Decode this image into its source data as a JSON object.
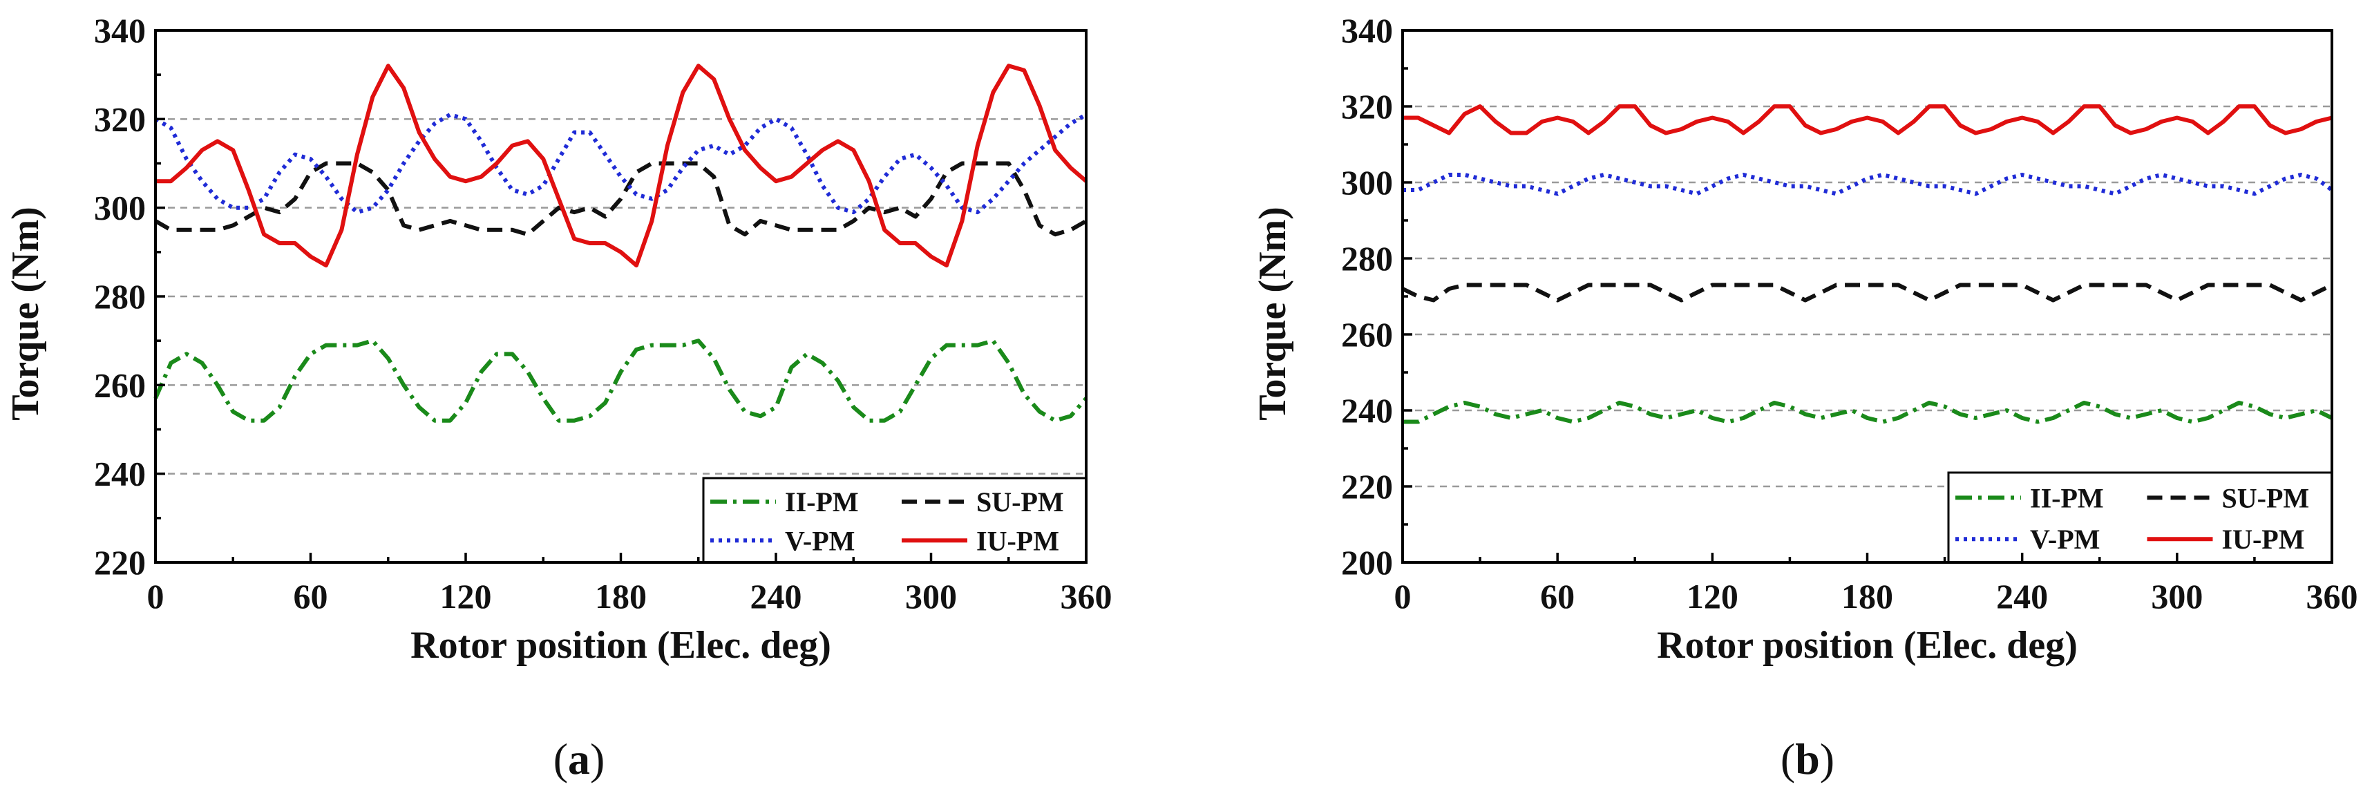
{
  "chart_data": [
    {
      "type": "line",
      "panel": "a",
      "xlabel": "Rotor position (Elec. deg)",
      "ylabel": "Torque (Nm)",
      "xlim": [
        0,
        360
      ],
      "ylim": [
        220,
        340
      ],
      "xticks": [
        "0",
        "60",
        "120",
        "180",
        "240",
        "300",
        "360"
      ],
      "yticks": [
        "220",
        "240",
        "260",
        "280",
        "300",
        "320",
        "340"
      ],
      "legend_position": "bottom-right",
      "grid": "horizontal dashed",
      "series": [
        {
          "name": "II-PM",
          "color": "#1a8a1a",
          "style": "dash-dot",
          "x": [
            0,
            6,
            12,
            18,
            24,
            30,
            36,
            42,
            48,
            54,
            60,
            66,
            72,
            78,
            84,
            90,
            96,
            102,
            108,
            114,
            120,
            126,
            132,
            138,
            144,
            150,
            156,
            162,
            168,
            174,
            180,
            186,
            192,
            198,
            204,
            210,
            216,
            222,
            228,
            234,
            240,
            246,
            252,
            258,
            264,
            270,
            276,
            282,
            288,
            294,
            300,
            306,
            312,
            318,
            324,
            330,
            336,
            342,
            348,
            354,
            360
          ],
          "values": [
            257,
            265,
            267,
            265,
            260,
            254,
            252,
            252,
            255,
            262,
            267,
            269,
            269,
            269,
            270,
            266,
            260,
            255,
            252,
            252,
            256,
            263,
            267,
            267,
            263,
            257,
            252,
            252,
            253,
            256,
            263,
            268,
            269,
            269,
            269,
            270,
            266,
            259,
            254,
            253,
            255,
            264,
            267,
            265,
            261,
            255,
            252,
            252,
            254,
            260,
            266,
            269,
            269,
            269,
            270,
            265,
            258,
            254,
            252,
            253,
            257
          ]
        },
        {
          "name": "SU-PM",
          "color": "#111111",
          "style": "dash",
          "x": [
            0,
            6,
            12,
            18,
            24,
            30,
            36,
            42,
            48,
            54,
            60,
            66,
            72,
            78,
            84,
            90,
            96,
            102,
            108,
            114,
            120,
            126,
            132,
            138,
            144,
            150,
            156,
            162,
            168,
            174,
            180,
            186,
            192,
            198,
            204,
            210,
            216,
            222,
            228,
            234,
            240,
            246,
            252,
            258,
            264,
            270,
            276,
            282,
            288,
            294,
            300,
            306,
            312,
            318,
            324,
            330,
            336,
            342,
            348,
            354,
            360
          ],
          "values": [
            297,
            295,
            295,
            295,
            295,
            296,
            298,
            300,
            299,
            302,
            308,
            310,
            310,
            310,
            308,
            304,
            296,
            295,
            296,
            297,
            296,
            295,
            295,
            295,
            294,
            297,
            300,
            299,
            300,
            298,
            302,
            308,
            310,
            310,
            310,
            310,
            307,
            296,
            294,
            297,
            296,
            295,
            295,
            295,
            295,
            297,
            300,
            299,
            300,
            298,
            302,
            308,
            310,
            310,
            310,
            310,
            304,
            296,
            294,
            295,
            297
          ]
        },
        {
          "name": "V-PM",
          "color": "#1f2bd6",
          "style": "dot",
          "x": [
            0,
            6,
            12,
            18,
            24,
            30,
            36,
            42,
            48,
            54,
            60,
            66,
            72,
            78,
            84,
            90,
            96,
            102,
            108,
            114,
            120,
            126,
            132,
            138,
            144,
            150,
            156,
            162,
            168,
            174,
            180,
            186,
            192,
            198,
            204,
            210,
            216,
            222,
            228,
            234,
            240,
            246,
            252,
            258,
            264,
            270,
            276,
            282,
            288,
            294,
            300,
            306,
            312,
            318,
            324,
            330,
            336,
            342,
            348,
            354,
            360
          ],
          "values": [
            320,
            318,
            311,
            306,
            302,
            300,
            300,
            302,
            308,
            312,
            311,
            307,
            302,
            299,
            300,
            304,
            310,
            315,
            319,
            321,
            320,
            315,
            309,
            304,
            303,
            305,
            311,
            317,
            317,
            312,
            307,
            303,
            302,
            304,
            309,
            313,
            314,
            312,
            314,
            318,
            320,
            318,
            312,
            305,
            300,
            299,
            302,
            307,
            311,
            312,
            309,
            305,
            300,
            299,
            302,
            306,
            310,
            313,
            316,
            319,
            321
          ]
        },
        {
          "name": "IU-PM",
          "color": "#e01010",
          "style": "solid",
          "x": [
            0,
            6,
            12,
            18,
            24,
            30,
            36,
            42,
            48,
            54,
            60,
            66,
            72,
            78,
            84,
            90,
            96,
            102,
            108,
            114,
            120,
            126,
            132,
            138,
            144,
            150,
            156,
            162,
            168,
            174,
            180,
            186,
            192,
            198,
            204,
            210,
            216,
            222,
            228,
            234,
            240,
            246,
            252,
            258,
            264,
            270,
            276,
            282,
            288,
            294,
            300,
            306,
            312,
            318,
            324,
            330,
            336,
            342,
            348,
            354,
            360
          ],
          "values": [
            306,
            306,
            309,
            313,
            315,
            313,
            304,
            294,
            292,
            292,
            289,
            287,
            295,
            312,
            325,
            332,
            327,
            317,
            311,
            307,
            306,
            307,
            310,
            314,
            315,
            311,
            302,
            293,
            292,
            292,
            290,
            287,
            297,
            314,
            326,
            332,
            329,
            320,
            313,
            309,
            306,
            307,
            310,
            313,
            315,
            313,
            306,
            295,
            292,
            292,
            289,
            287,
            297,
            314,
            326,
            332,
            331,
            323,
            313,
            309,
            306
          ]
        }
      ]
    },
    {
      "type": "line",
      "panel": "b",
      "xlabel": "Rotor position (Elec. deg)",
      "ylabel": "Torque (Nm)",
      "xlim": [
        0,
        360
      ],
      "ylim": [
        200,
        340
      ],
      "xticks": [
        "0",
        "60",
        "120",
        "180",
        "240",
        "300",
        "360"
      ],
      "yticks": [
        "200",
        "220",
        "240",
        "260",
        "280",
        "300",
        "320",
        "340"
      ],
      "legend_position": "bottom-right",
      "grid": "horizontal dashed",
      "series": [
        {
          "name": "II-PM",
          "color": "#1a8a1a",
          "style": "dash-dot",
          "x": [
            0,
            6,
            12,
            18,
            24,
            30,
            36,
            42,
            48,
            54,
            60,
            66,
            72,
            78,
            84,
            90,
            96,
            102,
            108,
            114,
            120,
            126,
            132,
            138,
            144,
            150,
            156,
            162,
            168,
            174,
            180,
            186,
            192,
            198,
            204,
            210,
            216,
            222,
            228,
            234,
            240,
            246,
            252,
            258,
            264,
            270,
            276,
            282,
            288,
            294,
            300,
            306,
            312,
            318,
            324,
            330,
            336,
            342,
            348,
            354,
            360
          ],
          "values": [
            237,
            237,
            239,
            241,
            242,
            241,
            239,
            238,
            239,
            240,
            238,
            237,
            238,
            240,
            242,
            241,
            239,
            238,
            239,
            240,
            238,
            237,
            238,
            240,
            242,
            241,
            239,
            238,
            239,
            240,
            238,
            237,
            238,
            240,
            242,
            241,
            239,
            238,
            239,
            240,
            238,
            237,
            238,
            240,
            242,
            241,
            239,
            238,
            239,
            240,
            238,
            237,
            238,
            240,
            242,
            241,
            239,
            238,
            239,
            240,
            238
          ]
        },
        {
          "name": "SU-PM",
          "color": "#111111",
          "style": "dash",
          "x": [
            0,
            6,
            12,
            18,
            24,
            30,
            36,
            42,
            48,
            54,
            60,
            66,
            72,
            78,
            84,
            90,
            96,
            102,
            108,
            114,
            120,
            126,
            132,
            138,
            144,
            150,
            156,
            162,
            168,
            174,
            180,
            186,
            192,
            198,
            204,
            210,
            216,
            222,
            228,
            234,
            240,
            246,
            252,
            258,
            264,
            270,
            276,
            282,
            288,
            294,
            300,
            306,
            312,
            318,
            324,
            330,
            336,
            342,
            348,
            354,
            360
          ],
          "values": [
            272,
            270,
            269,
            272,
            273,
            273,
            273,
            273,
            273,
            271,
            269,
            271,
            273,
            273,
            273,
            273,
            273,
            271,
            269,
            271,
            273,
            273,
            273,
            273,
            273,
            271,
            269,
            271,
            273,
            273,
            273,
            273,
            273,
            271,
            269,
            271,
            273,
            273,
            273,
            273,
            273,
            271,
            269,
            271,
            273,
            273,
            273,
            273,
            273,
            271,
            269,
            271,
            273,
            273,
            273,
            273,
            273,
            271,
            269,
            271,
            273
          ]
        },
        {
          "name": "V-PM",
          "color": "#1f2bd6",
          "style": "dot",
          "x": [
            0,
            6,
            12,
            18,
            24,
            30,
            36,
            42,
            48,
            54,
            60,
            66,
            72,
            78,
            84,
            90,
            96,
            102,
            108,
            114,
            120,
            126,
            132,
            138,
            144,
            150,
            156,
            162,
            168,
            174,
            180,
            186,
            192,
            198,
            204,
            210,
            216,
            222,
            228,
            234,
            240,
            246,
            252,
            258,
            264,
            270,
            276,
            282,
            288,
            294,
            300,
            306,
            312,
            318,
            324,
            330,
            336,
            342,
            348,
            354,
            360
          ],
          "values": [
            298,
            298,
            300,
            302,
            302,
            301,
            300,
            299,
            299,
            298,
            297,
            299,
            301,
            302,
            301,
            300,
            299,
            299,
            298,
            297,
            299,
            301,
            302,
            301,
            300,
            299,
            299,
            298,
            297,
            299,
            301,
            302,
            301,
            300,
            299,
            299,
            298,
            297,
            299,
            301,
            302,
            301,
            300,
            299,
            299,
            298,
            297,
            299,
            301,
            302,
            301,
            300,
            299,
            299,
            298,
            297,
            299,
            301,
            302,
            301,
            298
          ]
        },
        {
          "name": "IU-PM",
          "color": "#e01010",
          "style": "solid",
          "x": [
            0,
            6,
            12,
            18,
            24,
            30,
            36,
            42,
            48,
            54,
            60,
            66,
            72,
            78,
            84,
            90,
            96,
            102,
            108,
            114,
            120,
            126,
            132,
            138,
            144,
            150,
            156,
            162,
            168,
            174,
            180,
            186,
            192,
            198,
            204,
            210,
            216,
            222,
            228,
            234,
            240,
            246,
            252,
            258,
            264,
            270,
            276,
            282,
            288,
            294,
            300,
            306,
            312,
            318,
            324,
            330,
            336,
            342,
            348,
            354,
            360
          ],
          "values": [
            317,
            317,
            315,
            313,
            318,
            320,
            316,
            313,
            313,
            316,
            317,
            316,
            313,
            316,
            320,
            320,
            315,
            313,
            314,
            316,
            317,
            316,
            313,
            316,
            320,
            320,
            315,
            313,
            314,
            316,
            317,
            316,
            313,
            316,
            320,
            320,
            315,
            313,
            314,
            316,
            317,
            316,
            313,
            316,
            320,
            320,
            315,
            313,
            314,
            316,
            317,
            316,
            313,
            316,
            320,
            320,
            315,
            313,
            314,
            316,
            317
          ]
        }
      ]
    }
  ],
  "captions": {
    "a": "a",
    "b": "b"
  }
}
